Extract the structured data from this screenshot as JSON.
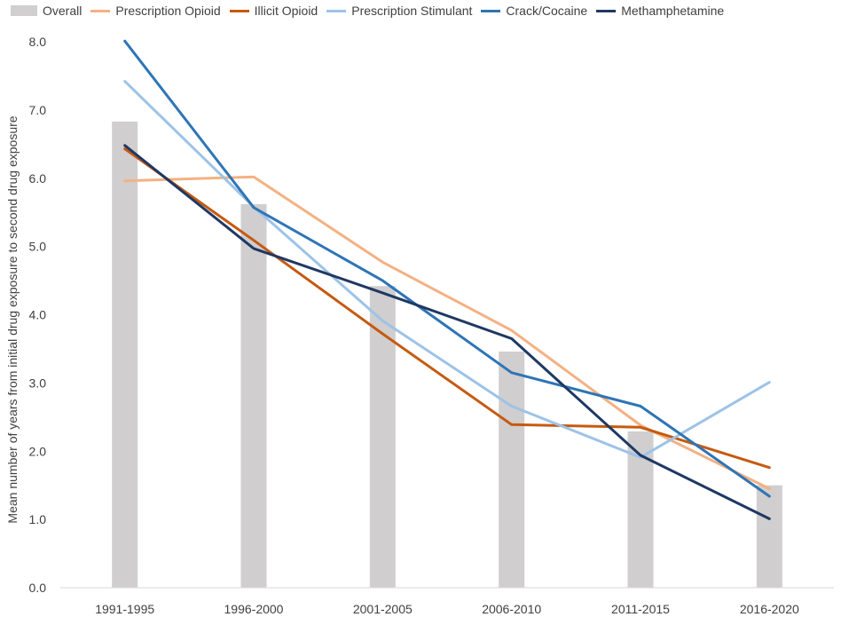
{
  "chart_data": {
    "type": "bar+line",
    "title": "",
    "xlabel": "",
    "ylabel": "Mean number of years from initial drug exposure to second drug exposure",
    "ylim": [
      0,
      8
    ],
    "yticks": [
      "0.0",
      "1.0",
      "2.0",
      "3.0",
      "4.0",
      "5.0",
      "6.0",
      "7.0",
      "8.0"
    ],
    "grid": false,
    "legend_position": "top",
    "categories": [
      "1991-1995",
      "1996-2000",
      "2001-2005",
      "2006-2010",
      "2011-2015",
      "2016-2020"
    ],
    "bar_series": {
      "name": "Overall",
      "color": "#d0cece",
      "values": [
        6.83,
        5.62,
        4.42,
        3.46,
        2.29,
        1.5
      ]
    },
    "series": [
      {
        "name": "Prescription Opioid",
        "color": "#f4b183",
        "values": [
          5.96,
          6.02,
          4.77,
          3.77,
          2.38,
          1.45
        ]
      },
      {
        "name": "Illicit Opioid",
        "color": "#c55a11",
        "values": [
          6.43,
          5.09,
          3.72,
          2.39,
          2.35,
          1.76
        ]
      },
      {
        "name": "Prescription Stimulant",
        "color": "#9dc3e6",
        "values": [
          7.42,
          5.58,
          3.91,
          2.66,
          1.91,
          3.01
        ]
      },
      {
        "name": "Crack/Cocaine",
        "color": "#2e75b6",
        "values": [
          8.01,
          5.57,
          4.5,
          3.15,
          2.66,
          1.34
        ]
      },
      {
        "name": "Methamphetamine",
        "color": "#1f3864",
        "values": [
          6.48,
          4.97,
          4.32,
          3.65,
          1.94,
          1.01
        ]
      }
    ]
  }
}
